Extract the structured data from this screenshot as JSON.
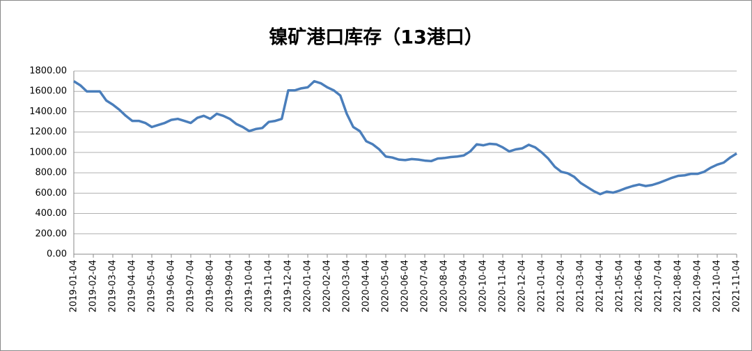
{
  "chart_data": {
    "type": "line",
    "title": "镍矿港口库存（13港口）",
    "categories": [
      "2019-01-04",
      null,
      null,
      "2019-02-04",
      null,
      null,
      "2019-03-04",
      null,
      null,
      "2019-04-04",
      null,
      null,
      "2019-05-04",
      null,
      null,
      "2019-06-04",
      null,
      null,
      "2019-07-04",
      null,
      null,
      "2019-08-04",
      null,
      null,
      "2019-09-04",
      null,
      null,
      "2019-10-04",
      null,
      null,
      "2019-11-04",
      null,
      null,
      "2019-12-04",
      null,
      null,
      "2020-01-04",
      null,
      null,
      "2020-02-04",
      null,
      null,
      "2020-03-04",
      null,
      null,
      "2020-04-04",
      null,
      null,
      "2020-05-04",
      null,
      null,
      "2020-06-04",
      null,
      null,
      "2020-07-04",
      null,
      null,
      "2020-08-04",
      null,
      null,
      "2020-09-04",
      null,
      null,
      "2020-10-04",
      null,
      null,
      "2020-11-04",
      null,
      null,
      "2020-12-04",
      null,
      null,
      "2021-01-04",
      null,
      null,
      "2021-02-04",
      null,
      null,
      "2021-03-04",
      null,
      null,
      "2021-04-04",
      null,
      null,
      "2021-05-04",
      null,
      null,
      "2021-06-04",
      null,
      null,
      "2021-07-04",
      null,
      null,
      "2021-08-04",
      null,
      null,
      "2021-09-04",
      null,
      null,
      "2021-10-04",
      null,
      null,
      "2021-11-04"
    ],
    "values": [
      1700,
      1660,
      1600,
      1600,
      1600,
      1510,
      1470,
      1420,
      1360,
      1310,
      1310,
      1290,
      1250,
      1270,
      1290,
      1320,
      1330,
      1310,
      1290,
      1340,
      1360,
      1330,
      1380,
      1360,
      1330,
      1280,
      1250,
      1210,
      1230,
      1240,
      1300,
      1310,
      1330,
      1610,
      1610,
      1630,
      1640,
      1700,
      1680,
      1640,
      1610,
      1560,
      1380,
      1250,
      1210,
      1110,
      1080,
      1030,
      960,
      950,
      930,
      925,
      935,
      930,
      920,
      915,
      940,
      945,
      955,
      960,
      970,
      1010,
      1080,
      1070,
      1085,
      1080,
      1050,
      1010,
      1030,
      1040,
      1075,
      1050,
      1000,
      940,
      860,
      810,
      795,
      760,
      700,
      660,
      620,
      590,
      615,
      605,
      625,
      650,
      670,
      685,
      670,
      680,
      700,
      725,
      750,
      770,
      775,
      790,
      790,
      810,
      850,
      880,
      900,
      950,
      990
    ],
    "color": "#4a7ebb",
    "ylim": [
      0,
      1800
    ],
    "yticks": [
      {
        "value": 0,
        "label": "0.00"
      },
      {
        "value": 200,
        "label": "200.00"
      },
      {
        "value": 400,
        "label": "400.00"
      },
      {
        "value": 600,
        "label": "600.00"
      },
      {
        "value": 800,
        "label": "800.00"
      },
      {
        "value": 1000,
        "label": "1000.00"
      },
      {
        "value": 1200,
        "label": "1200.00"
      },
      {
        "value": 1400,
        "label": "1400.00"
      },
      {
        "value": 1600,
        "label": "1600.00"
      },
      {
        "value": 1800,
        "label": "1800.00"
      }
    ],
    "grid": true
  }
}
